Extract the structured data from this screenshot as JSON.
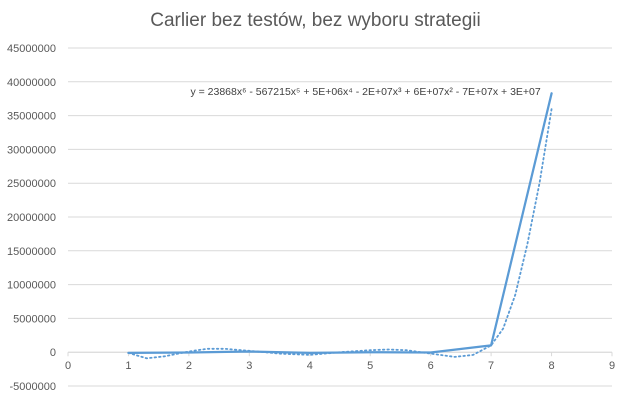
{
  "chart_data": {
    "type": "scatter",
    "title": "Carlier bez testów, bez wyboru strategii",
    "xlabel": "",
    "ylabel": "",
    "xlim": [
      0,
      9
    ],
    "ylim": [
      -5000000,
      45000000
    ],
    "x_ticks": [
      "0",
      "1",
      "2",
      "3",
      "4",
      "5",
      "6",
      "7",
      "8",
      "9"
    ],
    "y_ticks": [
      "-5000000",
      "0",
      "5000000",
      "10000000",
      "15000000",
      "20000000",
      "25000000",
      "30000000",
      "35000000",
      "40000000",
      "45000000"
    ],
    "grid": "horizontal",
    "series": [
      {
        "type": "line",
        "style": "solid",
        "color": "#5b9bd5",
        "x": [
          1,
          2,
          3,
          4,
          5,
          6,
          7,
          8
        ],
        "y": [
          -100000,
          -50000,
          100000,
          -100000,
          0,
          -50000,
          1000000,
          38300000
        ]
      },
      {
        "type": "trendline",
        "style": "dotted",
        "color": "#5b9bd5",
        "x": [
          1,
          1.3,
          1.6,
          2,
          2.3,
          2.6,
          3,
          3.5,
          4,
          4.5,
          5,
          5.3,
          5.6,
          6,
          6.4,
          6.7,
          7,
          7.2,
          7.4,
          7.6,
          7.8,
          8
        ],
        "y": [
          -100000,
          -900000,
          -600000,
          100000,
          500000,
          500000,
          200000,
          -200000,
          -400000,
          0,
          300000,
          400000,
          300000,
          -200000,
          -700000,
          -400000,
          1000000,
          3500000,
          8500000,
          16000000,
          25000000,
          36000000
        ]
      }
    ],
    "annotations": [
      {
        "text": "y = 23868x⁶ - 567215x⁵ + 5E+06x⁴ - 2E+07x³ + 6E+07x² - 7E+07x + 3E+07",
        "at_x": 1,
        "at_y": 38500000
      }
    ],
    "colors": {
      "grid": "#d9d9d9",
      "axis_text": "#595959",
      "series": "#5b9bd5"
    }
  }
}
